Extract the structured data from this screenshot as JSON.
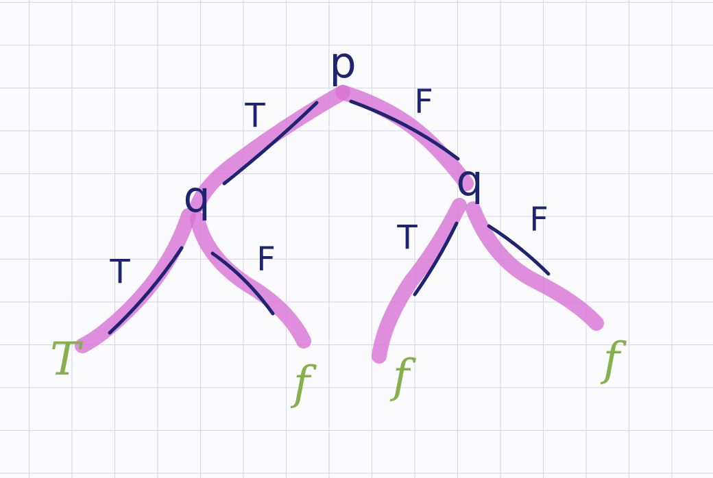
{
  "colors": {
    "ink": "#1d2470",
    "highlight": "#d874d6",
    "leaf": "#86b04e",
    "grid": "#d6d6ea",
    "background": "#fbfbfe"
  },
  "tree": {
    "root": {
      "label": "p"
    },
    "left_node": {
      "label": "q"
    },
    "right_node": {
      "label": "q"
    },
    "edges": {
      "root_left": "T",
      "root_right": "F",
      "left_left": "T",
      "left_right": "F",
      "right_left": "T",
      "right_right": "F"
    },
    "leaves": {
      "ll": "T",
      "lr": "f",
      "rl": "f",
      "rr": "f"
    }
  }
}
